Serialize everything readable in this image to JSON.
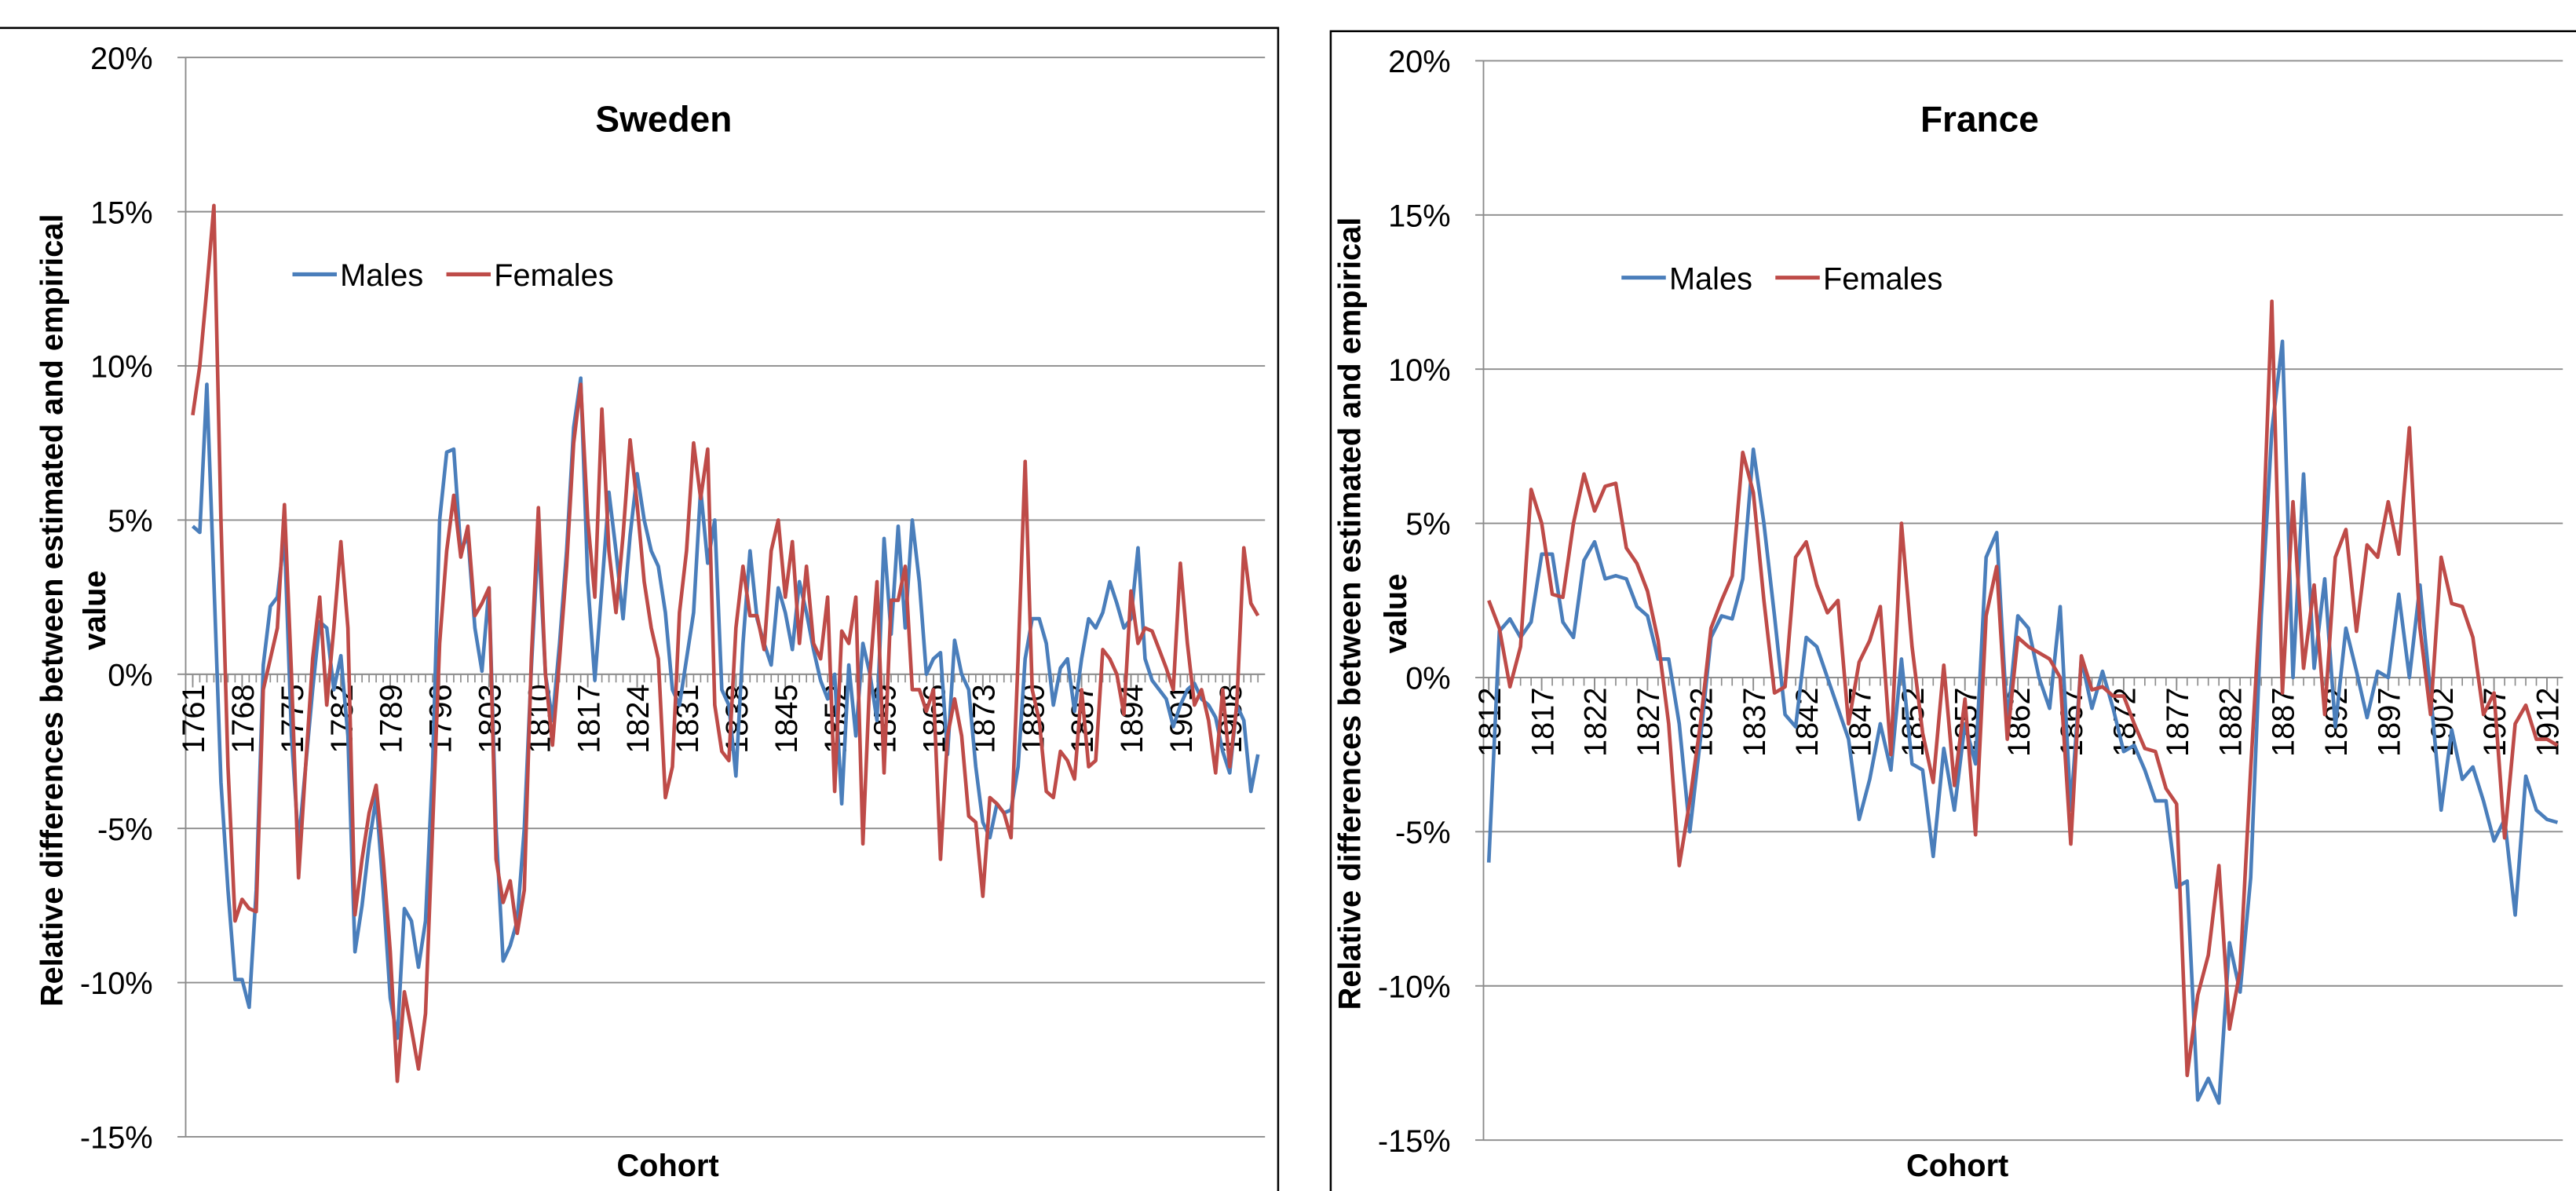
{
  "chart_data": [
    {
      "type": "line",
      "title": "Sweden",
      "x_label": "Cohort",
      "y_label": "Relative differences between estimated and empirical value",
      "legend": "upper left",
      "grid": true,
      "x": [
        1761,
        1762,
        1763,
        1764,
        1765,
        1766,
        1767,
        1768,
        1769,
        1770,
        1771,
        1772,
        1773,
        1774,
        1775,
        1776,
        1777,
        1778,
        1779,
        1780,
        1781,
        1782,
        1783,
        1784,
        1785,
        1786,
        1787,
        1788,
        1789,
        1790,
        1791,
        1792,
        1793,
        1794,
        1795,
        1796,
        1797,
        1798,
        1799,
        1800,
        1801,
        1802,
        1803,
        1804,
        1805,
        1806,
        1807,
        1808,
        1809,
        1810,
        1811,
        1812,
        1813,
        1814,
        1815,
        1816,
        1817,
        1818,
        1819,
        1820,
        1821,
        1822,
        1823,
        1824,
        1825,
        1826,
        1827,
        1828,
        1829,
        1830,
        1831,
        1832,
        1833,
        1834,
        1835,
        1836,
        1837,
        1838,
        1839,
        1840,
        1841,
        1842,
        1843,
        1844,
        1845,
        1846,
        1847,
        1848,
        1849,
        1850,
        1851,
        1852,
        1853,
        1854,
        1855,
        1856,
        1857,
        1858,
        1859,
        1860,
        1861,
        1862,
        1863,
        1864,
        1865,
        1866,
        1867,
        1868,
        1869,
        1870,
        1871,
        1872,
        1873,
        1874,
        1875,
        1876,
        1877,
        1878,
        1879,
        1880,
        1881,
        1882,
        1883,
        1884,
        1885,
        1886,
        1887,
        1888,
        1889,
        1890,
        1891,
        1892,
        1893,
        1894,
        1895,
        1896,
        1897,
        1898,
        1899,
        1900,
        1901,
        1902,
        1903,
        1904,
        1905,
        1906,
        1907,
        1908,
        1909,
        1910,
        1911,
        1912
      ],
      "series": [
        {
          "name": "Males",
          "color": "#4a7ebb",
          "values": [
            4.8,
            4.6,
            9.4,
            3,
            -3.5,
            -7,
            -9.9,
            -9.9,
            -10.8,
            -7,
            0.3,
            2.2,
            2.5,
            4.5,
            -2,
            -5.5,
            -3,
            -0.5,
            1.7,
            1.5,
            -0.5,
            0.6,
            -2,
            -9,
            -7.5,
            -5.5,
            -4,
            -7,
            -10.5,
            -11.8,
            -7.6,
            -8,
            -9.5,
            -8,
            -3,
            5,
            7.2,
            7.3,
            4,
            4.5,
            1.5,
            0.1,
            2.8,
            -5,
            -9.3,
            -8.8,
            -8,
            -5,
            0.2,
            4.5,
            0,
            -1.5,
            1,
            4,
            8,
            9.6,
            3,
            -0.2,
            2.8,
            5.9,
            4,
            1.8,
            4.5,
            6.5,
            5,
            4,
            3.5,
            2,
            -0.5,
            -1,
            0.5,
            2,
            6,
            3.6,
            5,
            -0.5,
            -1,
            -3.3,
            1,
            4,
            1.8,
            1,
            0.3,
            2.8,
            2,
            0.8,
            3,
            2,
            0.8,
            -0.2,
            -0.8,
            0,
            -4.2,
            0.3,
            -2,
            1,
            0,
            -1.5,
            4.4,
            1.3,
            4.8,
            1.5,
            5,
            3,
            0,
            0.5,
            0.7,
            -2.6,
            1.1,
            0,
            -0.5,
            -3,
            -4.8,
            -5.3,
            -4.2,
            -4.5,
            -4.4,
            -3,
            0.5,
            1.8,
            1.8,
            1,
            -1,
            0.2,
            0.5,
            -1.2,
            0.5,
            1.8,
            1.5,
            2,
            3,
            2.3,
            1.5,
            1.8,
            4.1,
            0.5,
            -0.2,
            -0.5,
            -0.8,
            -1.7,
            -1,
            -0.5,
            -0.3,
            -0.8,
            -1,
            -1.4,
            -2.5,
            -3.2,
            -1,
            -1.5,
            -3.8,
            -2.6
          ]
        },
        {
          "name": "Females",
          "color": "#be4b48",
          "values": [
            8.4,
            10,
            12.5,
            15.2,
            5,
            -3,
            -8,
            -7.3,
            -7.6,
            -7.7,
            -0.5,
            0.5,
            1.5,
            5.5,
            0,
            -6.6,
            -3,
            0.5,
            2.5,
            -1,
            1.5,
            4.3,
            1.5,
            -7.8,
            -6,
            -4.5,
            -3.6,
            -6,
            -9,
            -13.2,
            -10.3,
            -11.5,
            -12.8,
            -11,
            -5,
            1,
            4,
            5.8,
            3.8,
            4.8,
            1.9,
            2.3,
            2.8,
            -6,
            -7.4,
            -6.7,
            -8.4,
            -7,
            0.5,
            5.4,
            0,
            -2.3,
            0.5,
            3.5,
            7.5,
            9.4,
            5,
            2.5,
            8.6,
            4,
            2,
            4.5,
            7.6,
            5.5,
            3,
            1.5,
            0.5,
            -4,
            -3,
            2,
            4,
            7.5,
            5.7,
            7.3,
            -1,
            -2.5,
            -2.8,
            1.5,
            3.5,
            1.9,
            1.9,
            0.8,
            4,
            5,
            2.5,
            4.3,
            1,
            3.5,
            1,
            0.5,
            2.5,
            -3.8,
            1.4,
            1,
            2.5,
            -5.5,
            0,
            3,
            -3.2,
            2.4,
            2.4,
            3.5,
            -0.5,
            -0.5,
            -1.2,
            -0.5,
            -6,
            -2,
            -0.8,
            -2,
            -4.6,
            -4.8,
            -7.2,
            -4,
            -4.2,
            -4.5,
            -5.3,
            0.5,
            6.9,
            -0.5,
            -1.5,
            -3.8,
            -4,
            -2.5,
            -2.8,
            -3.4,
            -0.5,
            -3,
            -2.8,
            0.8,
            0.5,
            0,
            -1.3,
            2.7,
            1,
            1.5,
            1.4,
            0.8,
            0.2,
            -0.5,
            3.6,
            1,
            -1,
            -0.5,
            -1.5,
            -3.2,
            -0.5,
            -3,
            -1,
            4.1,
            2.3,
            1.9
          ]
        }
      ],
      "xlim": [
        1760,
        1913
      ],
      "xticks": [
        1761,
        1768,
        1775,
        1782,
        1789,
        1796,
        1803,
        1810,
        1817,
        1824,
        1831,
        1838,
        1845,
        1852,
        1859,
        1866,
        1873,
        1880,
        1887,
        1894,
        1901,
        1908
      ],
      "ylim": [
        -15,
        20
      ],
      "yticks": [
        {
          "value": -15,
          "label": "-15%"
        },
        {
          "value": -10,
          "label": "-10%"
        },
        {
          "value": -5,
          "label": "-5%"
        },
        {
          "value": 0,
          "label": "0%"
        },
        {
          "value": 5,
          "label": "5%"
        },
        {
          "value": 10,
          "label": "10%"
        },
        {
          "value": 15,
          "label": "15%"
        },
        {
          "value": 20,
          "label": "20%"
        }
      ]
    },
    {
      "type": "line",
      "title": "France",
      "x_label": "Cohort",
      "y_label": "Relative differences between estimated and empirical value",
      "legend": "upper left",
      "grid": true,
      "x": [
        1812,
        1813,
        1814,
        1815,
        1816,
        1817,
        1818,
        1819,
        1820,
        1821,
        1822,
        1823,
        1824,
        1825,
        1826,
        1827,
        1828,
        1829,
        1830,
        1831,
        1832,
        1833,
        1834,
        1835,
        1836,
        1837,
        1838,
        1839,
        1840,
        1841,
        1842,
        1843,
        1844,
        1845,
        1846,
        1847,
        1848,
        1849,
        1850,
        1851,
        1852,
        1853,
        1854,
        1855,
        1856,
        1857,
        1858,
        1859,
        1860,
        1861,
        1862,
        1863,
        1864,
        1865,
        1866,
        1867,
        1868,
        1869,
        1870,
        1871,
        1872,
        1873,
        1874,
        1875,
        1876,
        1877,
        1878,
        1879,
        1880,
        1881,
        1882,
        1883,
        1884,
        1885,
        1886,
        1887,
        1888,
        1889,
        1890,
        1891,
        1892,
        1893,
        1894,
        1895,
        1896,
        1897,
        1898,
        1899,
        1900,
        1901,
        1902,
        1903,
        1904,
        1905,
        1906,
        1907,
        1908,
        1909,
        1910,
        1911,
        1912,
        1913
      ],
      "series": [
        {
          "name": "Males",
          "color": "#4a7ebb",
          "values": [
            -6,
            1.5,
            1.9,
            1.3,
            1.8,
            4,
            4,
            1.8,
            1.3,
            3.8,
            4.4,
            3.2,
            3.3,
            3.2,
            2.3,
            2,
            0.6,
            0.6,
            -1.5,
            -5,
            -2,
            1.3,
            2,
            1.9,
            3.2,
            7.4,
            5,
            2,
            -1.2,
            -1.6,
            1.3,
            1,
            0,
            -1,
            -2,
            -4.6,
            -3.3,
            -1.5,
            -3,
            0.6,
            -2.8,
            -3,
            -5.8,
            -2.3,
            -4.3,
            -1.5,
            -2.8,
            3.9,
            4.7,
            -1.5,
            2,
            1.6,
            0,
            -1,
            2.3,
            -4.3,
            0.6,
            -1,
            0.2,
            -1,
            -2.4,
            -2.2,
            -3,
            -4,
            -4,
            -6.8,
            -6.6,
            -13.7,
            -13,
            -13.8,
            -8.6,
            -10.2,
            -6.5,
            2,
            8,
            10.9,
            0,
            6.6,
            0.3,
            3.2,
            -1.6,
            1.6,
            0.2,
            -1.3,
            0.2,
            0,
            2.7,
            0,
            3,
            -0.5,
            -4.3,
            -1.7,
            -3.3,
            -2.9,
            -4,
            -5.3,
            -4.6,
            -7.7,
            -3.2,
            -4.3,
            -4.6,
            -4.7
          ]
        },
        {
          "name": "Females",
          "color": "#be4b48",
          "values": [
            2.5,
            1.6,
            -0.3,
            1,
            6.1,
            5,
            2.7,
            2.6,
            5,
            6.6,
            5.4,
            6.2,
            6.3,
            4.2,
            3.7,
            2.8,
            1.2,
            -1.5,
            -6.1,
            -4,
            -1.5,
            1.6,
            2.5,
            3.3,
            7.3,
            6,
            2.5,
            -0.5,
            -0.3,
            3.9,
            4.4,
            3,
            2.1,
            2.5,
            -1.5,
            0.5,
            1.2,
            2.3,
            -2.5,
            5,
            1,
            -1.8,
            -3.4,
            0.4,
            -3.5,
            -0.7,
            -5.1,
            2,
            3.6,
            -2,
            1.3,
            1,
            0.8,
            0.6,
            0,
            -5.4,
            0.7,
            -0.4,
            -0.3,
            -0.6,
            -0.6,
            -1.5,
            -2.3,
            -2.4,
            -3.6,
            -4.1,
            -12.9,
            -10.3,
            -9,
            -6.1,
            -11.4,
            -9.5,
            -3,
            3,
            12.2,
            -0.5,
            5.7,
            0.3,
            3,
            -1.2,
            3.9,
            4.8,
            1.5,
            4.3,
            3.9,
            5.7,
            4,
            8.1,
            1.6,
            -1.2,
            3.9,
            2.4,
            2.3,
            1.3,
            -1.2,
            -0.5,
            -5.2,
            -1.5,
            -0.9,
            -2,
            -2,
            -2.2
          ]
        }
      ],
      "xlim": [
        1811.5,
        1913.5
      ],
      "xticks": [
        1812,
        1817,
        1822,
        1827,
        1832,
        1837,
        1842,
        1847,
        1852,
        1857,
        1862,
        1867,
        1872,
        1877,
        1882,
        1887,
        1892,
        1897,
        1902,
        1907,
        1912
      ],
      "ylim": [
        -15,
        20
      ],
      "yticks": [
        {
          "value": -15,
          "label": "-15%"
        },
        {
          "value": -10,
          "label": "-10%"
        },
        {
          "value": -5,
          "label": "-5%"
        },
        {
          "value": 0,
          "label": "0%"
        },
        {
          "value": 5,
          "label": "5%"
        },
        {
          "value": 10,
          "label": "10%"
        },
        {
          "value": 15,
          "label": "15%"
        },
        {
          "value": 20,
          "label": "20%"
        }
      ]
    }
  ]
}
